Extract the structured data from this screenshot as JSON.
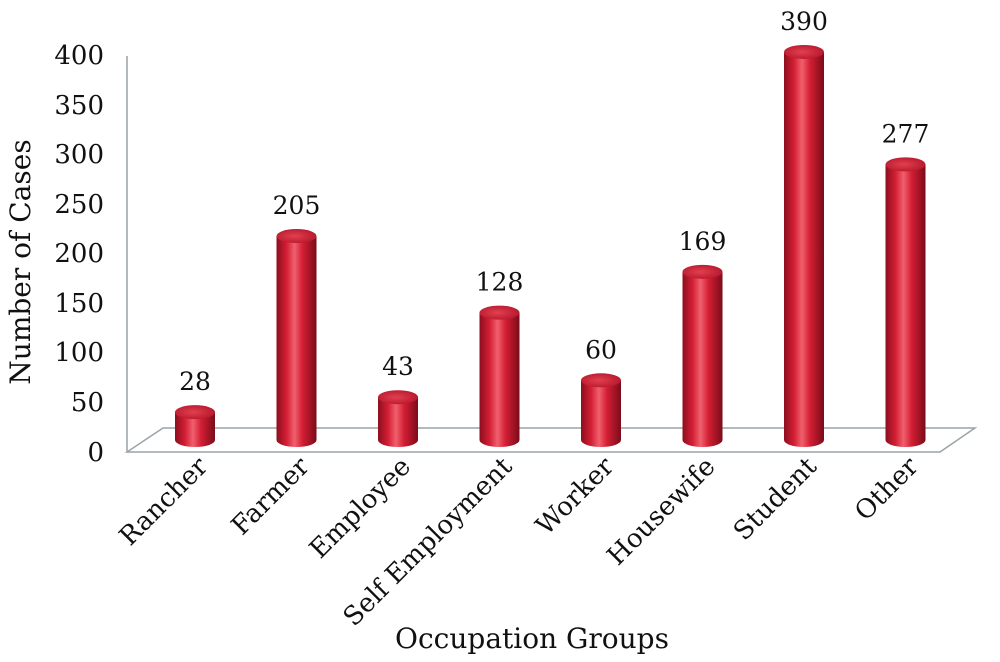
{
  "chart_data": {
    "type": "bar",
    "style": "3d-cylinder",
    "color": "#d41e34",
    "categories": [
      "Rancher",
      "Farmer",
      "Employee",
      "Self Employment",
      "Worker",
      "Housewife",
      "Student",
      "Other"
    ],
    "values": [
      28,
      205,
      43,
      128,
      60,
      169,
      390,
      277
    ],
    "xlabel": "Occupation Groups",
    "ylabel": "Number of Cases",
    "ylim": [
      0,
      400
    ],
    "yticks": [
      "0",
      "50",
      "100",
      "150",
      "200",
      "250",
      "300",
      "350",
      "400"
    ],
    "data_labels": [
      "28",
      "205",
      "43",
      "128",
      "60",
      "169",
      "390",
      "277"
    ],
    "grid": false,
    "legend": "none"
  }
}
